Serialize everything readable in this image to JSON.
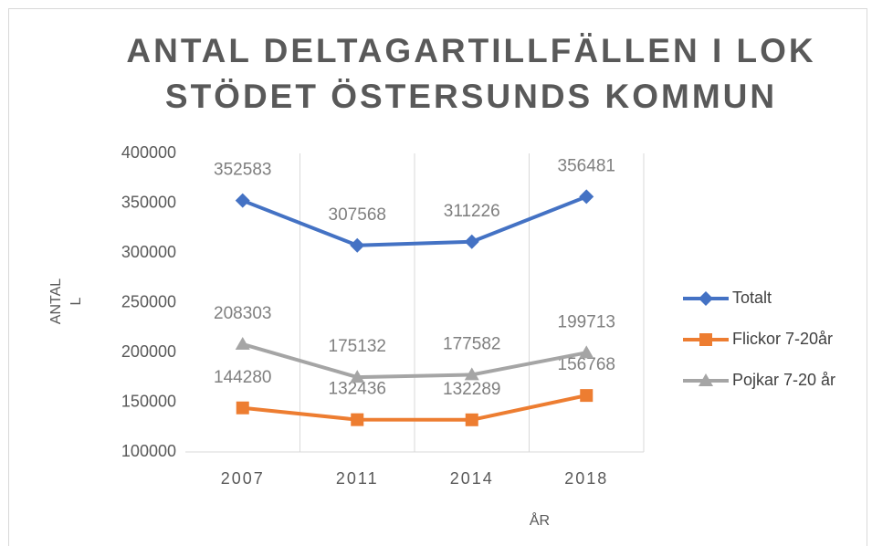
{
  "chart_data": {
    "type": "line",
    "title": [
      "ANTAL DELTAGARTILLFÄLLEN I LOK",
      "STÖDET ÖSTERSUNDS KOMMUN"
    ],
    "ylabel": [
      "ANTAL",
      "L"
    ],
    "xlabel": "ÅR",
    "categories": [
      "2007",
      "2011",
      "2014",
      "2018"
    ],
    "series": [
      {
        "name": "Totalt",
        "color": "#4472c4",
        "marker": "diamond",
        "values": [
          352583,
          307568,
          311226,
          356481
        ]
      },
      {
        "name": "Flickor 7-20år",
        "color": "#ed7d31",
        "marker": "square",
        "values": [
          144280,
          132436,
          132289,
          156768
        ]
      },
      {
        "name": "Pojkar 7-20 år",
        "color": "#a5a5a5",
        "marker": "triangle",
        "values": [
          208303,
          175132,
          177582,
          199713
        ]
      }
    ],
    "ylim": [
      100000,
      400000
    ],
    "yticks": [
      100000,
      150000,
      200000,
      250000,
      300000,
      350000,
      400000
    ],
    "legend": "right"
  }
}
